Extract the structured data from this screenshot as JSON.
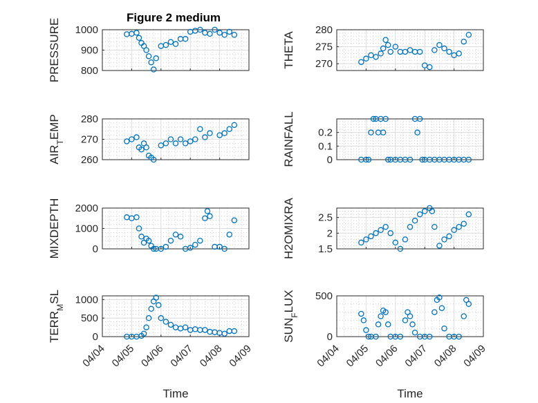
{
  "figure": {
    "title": "Figure 2 medium",
    "marker_color": "#0072BD",
    "x_ticks": [
      "04/04",
      "04/05",
      "04/06",
      "04/07",
      "04/08",
      "04/09"
    ],
    "x_label": "Time"
  },
  "chart_data": [
    {
      "type": "scatter",
      "ylabel": "PRESSURE",
      "ylim": [
        800,
        1000
      ],
      "yticks": [
        800,
        900,
        1000
      ],
      "xlim": [
        "04/04",
        "04/09"
      ],
      "grid": true,
      "x": [
        "04/04 20:00",
        "04/05 00:00",
        "04/05 04:00",
        "04/05 06:00",
        "04/05 08:00",
        "04/05 10:00",
        "04/05 12:00",
        "04/05 14:00",
        "04/05 16:00",
        "04/05 18:00",
        "04/05 20:00",
        "04/06 00:00",
        "04/06 04:00",
        "04/06 08:00",
        "04/06 12:00",
        "04/06 16:00",
        "04/06 20:00",
        "04/07 00:00",
        "04/07 04:00",
        "04/07 08:00",
        "04/07 12:00",
        "04/07 16:00",
        "04/07 20:00",
        "04/08 00:00",
        "04/08 04:00",
        "04/08 08:00",
        "04/08 12:00"
      ],
      "y": [
        978,
        980,
        985,
        960,
        935,
        920,
        900,
        870,
        840,
        805,
        860,
        920,
        925,
        940,
        930,
        955,
        955,
        990,
        995,
        1000,
        985,
        980,
        1000,
        985,
        975,
        990,
        975
      ]
    },
    {
      "type": "scatter",
      "ylabel": "THETA",
      "ylim": [
        268,
        280
      ],
      "yticks": [
        270,
        275,
        280
      ],
      "xlim": [
        "04/04",
        "04/09"
      ],
      "grid": true,
      "x": [
        "04/04 20:00",
        "04/05 00:00",
        "04/05 04:00",
        "04/05 08:00",
        "04/05 12:00",
        "04/05 14:00",
        "04/05 16:00",
        "04/05 18:00",
        "04/05 20:00",
        "04/06 00:00",
        "04/06 04:00",
        "04/06 08:00",
        "04/06 12:00",
        "04/06 16:00",
        "04/06 20:00",
        "04/07 00:00",
        "04/07 04:00",
        "04/07 08:00",
        "04/07 12:00",
        "04/07 16:00",
        "04/07 20:00",
        "04/08 00:00",
        "04/08 04:00",
        "04/08 08:00",
        "04/08 12:00"
      ],
      "y": [
        270.5,
        271.5,
        272.5,
        272.0,
        273.0,
        274.5,
        277.0,
        275.5,
        273.5,
        275.0,
        273.5,
        273.5,
        274.0,
        273.5,
        273.5,
        269.5,
        269.0,
        274.0,
        275.5,
        274.5,
        273.5,
        272.5,
        273.0,
        276.5,
        278.5
      ]
    },
    {
      "type": "scatter",
      "ylabel": "AIR_TEMP",
      "ylim": [
        260,
        280
      ],
      "yticks": [
        260,
        270,
        280
      ],
      "xlim": [
        "04/04",
        "04/09"
      ],
      "grid": true,
      "x": [
        "04/04 20:00",
        "04/05 00:00",
        "04/05 04:00",
        "04/05 06:00",
        "04/05 08:00",
        "04/05 10:00",
        "04/05 12:00",
        "04/05 14:00",
        "04/05 16:00",
        "04/05 18:00",
        "04/06 00:00",
        "04/06 04:00",
        "04/06 08:00",
        "04/06 12:00",
        "04/06 16:00",
        "04/06 20:00",
        "04/07 00:00",
        "04/07 04:00",
        "04/07 08:00",
        "04/07 12:00",
        "04/07 16:00",
        "04/08 00:00",
        "04/08 04:00",
        "04/08 08:00",
        "04/08 12:00"
      ],
      "y": [
        269,
        270,
        271,
        266,
        265,
        268,
        266,
        262,
        261,
        260,
        267,
        268,
        270,
        268,
        270,
        268,
        269,
        270,
        275,
        271,
        273,
        272,
        273,
        275,
        277
      ]
    },
    {
      "type": "scatter",
      "ylabel": "RAINFALL",
      "ylim": [
        0,
        0.3
      ],
      "yticks": [
        0,
        0.1,
        0.2
      ],
      "xlim": [
        "04/04",
        "04/09"
      ],
      "grid": true,
      "x": [
        "04/04 20:00",
        "04/05 00:00",
        "04/05 02:00",
        "04/05 04:00",
        "04/05 06:00",
        "04/05 08:00",
        "04/05 10:00",
        "04/05 12:00",
        "04/05 14:00",
        "04/05 16:00",
        "04/05 18:00",
        "04/05 20:00",
        "04/06 00:00",
        "04/06 04:00",
        "04/06 08:00",
        "04/06 12:00",
        "04/06 16:00",
        "04/06 18:00",
        "04/06 20:00",
        "04/06 22:00",
        "04/07 00:00",
        "04/07 04:00",
        "04/07 08:00",
        "04/07 12:00",
        "04/07 16:00",
        "04/07 20:00",
        "04/08 00:00",
        "04/08 04:00",
        "04/08 08:00",
        "04/08 12:00"
      ],
      "y": [
        0,
        0,
        0,
        0.2,
        0.3,
        0.3,
        0.2,
        0.3,
        0.2,
        0.3,
        0,
        0,
        0,
        0,
        0,
        0,
        0.3,
        0.2,
        0.3,
        0,
        0,
        0,
        0,
        0,
        0,
        0,
        0,
        0,
        0,
        0
      ]
    },
    {
      "type": "scatter",
      "ylabel": "MIXDEPTH",
      "ylim": [
        0,
        2000
      ],
      "yticks": [
        0,
        1000,
        2000
      ],
      "xlim": [
        "04/04",
        "04/09"
      ],
      "grid": true,
      "x": [
        "04/04 20:00",
        "04/05 00:00",
        "04/05 04:00",
        "04/05 06:00",
        "04/05 08:00",
        "04/05 10:00",
        "04/05 12:00",
        "04/05 14:00",
        "04/05 16:00",
        "04/05 18:00",
        "04/05 20:00",
        "04/06 00:00",
        "04/06 04:00",
        "04/06 08:00",
        "04/06 12:00",
        "04/06 16:00",
        "04/06 20:00",
        "04/07 00:00",
        "04/07 04:00",
        "04/07 08:00",
        "04/07 12:00",
        "04/07 14:00",
        "04/07 16:00",
        "04/07 20:00",
        "04/08 00:00",
        "04/08 04:00",
        "04/08 08:00",
        "04/08 12:00"
      ],
      "y": [
        1550,
        1500,
        1550,
        1000,
        600,
        300,
        500,
        400,
        150,
        0,
        0,
        0,
        100,
        400,
        700,
        600,
        0,
        50,
        200,
        400,
        1500,
        1850,
        1600,
        100,
        100,
        0,
        700,
        1400
      ]
    },
    {
      "type": "scatter",
      "ylabel": "H2OMIXRA",
      "ylim": [
        1.5,
        2.8
      ],
      "yticks": [
        1.5,
        2,
        2.5
      ],
      "xlim": [
        "04/04",
        "04/09"
      ],
      "grid": true,
      "x": [
        "04/04 20:00",
        "04/05 00:00",
        "04/05 04:00",
        "04/05 08:00",
        "04/05 12:00",
        "04/05 16:00",
        "04/05 20:00",
        "04/06 00:00",
        "04/06 04:00",
        "04/06 08:00",
        "04/06 12:00",
        "04/06 16:00",
        "04/06 20:00",
        "04/07 00:00",
        "04/07 04:00",
        "04/07 06:00",
        "04/07 08:00",
        "04/07 12:00",
        "04/07 16:00",
        "04/07 20:00",
        "04/08 00:00",
        "04/08 04:00",
        "04/08 08:00",
        "04/08 12:00"
      ],
      "y": [
        1.7,
        1.8,
        1.9,
        2.0,
        2.1,
        2.2,
        2.0,
        1.7,
        1.5,
        1.8,
        2.2,
        2.4,
        2.6,
        2.7,
        2.8,
        2.7,
        2.2,
        1.6,
        1.8,
        1.9,
        2.1,
        2.2,
        2.3,
        2.6
      ]
    },
    {
      "type": "scatter",
      "ylabel": "TERR_MSL",
      "ylim": [
        0,
        1100
      ],
      "yticks": [
        0,
        500,
        1000
      ],
      "xlim": [
        "04/04",
        "04/09"
      ],
      "grid": true,
      "x": [
        "04/04 20:00",
        "04/05 00:00",
        "04/05 04:00",
        "04/05 08:00",
        "04/05 10:00",
        "04/05 12:00",
        "04/05 14:00",
        "04/05 16:00",
        "04/05 18:00",
        "04/05 20:00",
        "04/05 22:00",
        "04/06 00:00",
        "04/06 04:00",
        "04/06 08:00",
        "04/06 12:00",
        "04/06 16:00",
        "04/06 20:00",
        "04/07 00:00",
        "04/07 04:00",
        "04/07 08:00",
        "04/07 12:00",
        "04/07 16:00",
        "04/07 20:00",
        "04/08 00:00",
        "04/08 04:00",
        "04/08 08:00",
        "04/08 12:00"
      ],
      "y": [
        0,
        0,
        0,
        20,
        80,
        250,
        500,
        750,
        950,
        1050,
        850,
        500,
        400,
        320,
        250,
        220,
        250,
        180,
        200,
        180,
        180,
        130,
        120,
        100,
        80,
        150,
        150
      ]
    },
    {
      "type": "scatter",
      "ylabel": "SUN_FLUX",
      "ylim": [
        0,
        500
      ],
      "yticks": [
        0,
        500
      ],
      "xlim": [
        "04/04",
        "04/09"
      ],
      "grid": true,
      "x": [
        "04/04 20:00",
        "04/04 22:00",
        "04/05 00:00",
        "04/05 02:00",
        "04/05 04:00",
        "04/05 08:00",
        "04/05 10:00",
        "04/05 12:00",
        "04/05 14:00",
        "04/05 16:00",
        "04/05 18:00",
        "04/05 20:00",
        "04/06 00:00",
        "04/06 04:00",
        "04/06 08:00",
        "04/06 10:00",
        "04/06 12:00",
        "04/06 14:00",
        "04/06 16:00",
        "04/06 20:00",
        "04/07 00:00",
        "04/07 04:00",
        "04/07 08:00",
        "04/07 10:00",
        "04/07 12:00",
        "04/07 14:00",
        "04/07 16:00",
        "04/07 20:00",
        "04/08 00:00",
        "04/08 04:00",
        "04/08 08:00",
        "04/08 10:00",
        "04/08 12:00"
      ],
      "y": [
        280,
        200,
        80,
        0,
        0,
        0,
        150,
        250,
        320,
        300,
        150,
        0,
        0,
        0,
        200,
        300,
        250,
        150,
        50,
        0,
        0,
        0,
        300,
        450,
        480,
        350,
        100,
        0,
        0,
        0,
        250,
        450,
        400
      ]
    }
  ]
}
